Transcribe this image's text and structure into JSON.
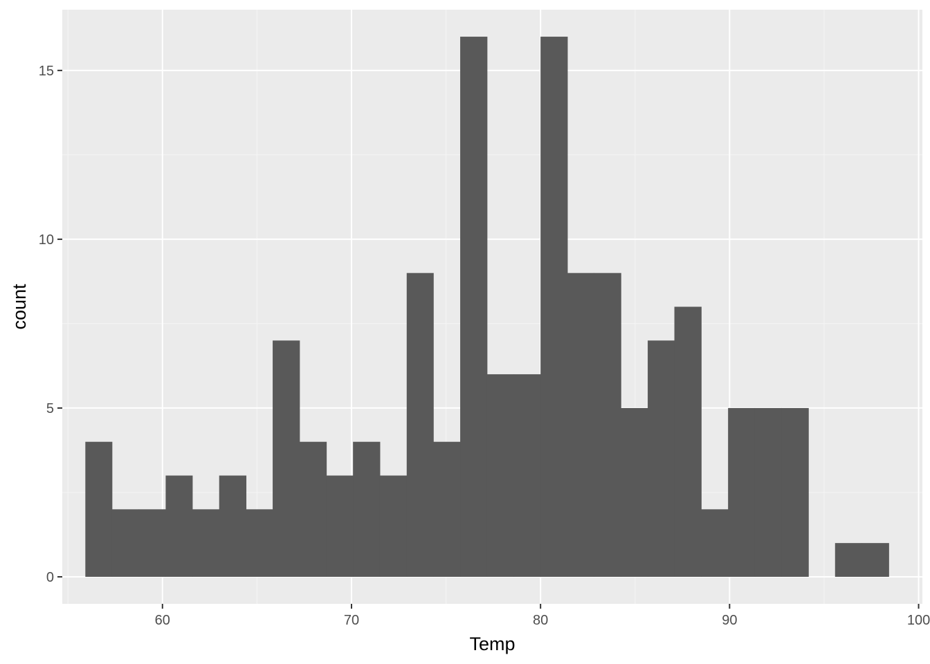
{
  "chart_data": {
    "type": "bar",
    "subtype": "histogram",
    "title": "",
    "xlabel": "Temp",
    "ylabel": "count",
    "bin_width": 1.4167,
    "bins": [
      {
        "x0": 55.92,
        "x1": 57.33,
        "count": 4
      },
      {
        "x0": 57.33,
        "x1": 58.75,
        "count": 2
      },
      {
        "x0": 58.75,
        "x1": 60.17,
        "count": 2
      },
      {
        "x0": 60.17,
        "x1": 61.58,
        "count": 3
      },
      {
        "x0": 61.58,
        "x1": 63.0,
        "count": 2
      },
      {
        "x0": 63.0,
        "x1": 64.42,
        "count": 3
      },
      {
        "x0": 64.42,
        "x1": 65.83,
        "count": 2
      },
      {
        "x0": 65.83,
        "x1": 67.25,
        "count": 7
      },
      {
        "x0": 67.25,
        "x1": 68.67,
        "count": 4
      },
      {
        "x0": 68.67,
        "x1": 70.08,
        "count": 3
      },
      {
        "x0": 70.08,
        "x1": 71.5,
        "count": 4
      },
      {
        "x0": 71.5,
        "x1": 72.92,
        "count": 3
      },
      {
        "x0": 72.92,
        "x1": 74.33,
        "count": 9
      },
      {
        "x0": 74.33,
        "x1": 75.75,
        "count": 4
      },
      {
        "x0": 75.75,
        "x1": 77.17,
        "count": 16
      },
      {
        "x0": 77.17,
        "x1": 78.58,
        "count": 6
      },
      {
        "x0": 78.58,
        "x1": 80.0,
        "count": 6
      },
      {
        "x0": 80.0,
        "x1": 81.42,
        "count": 16
      },
      {
        "x0": 81.42,
        "x1": 82.83,
        "count": 9
      },
      {
        "x0": 82.83,
        "x1": 84.25,
        "count": 9
      },
      {
        "x0": 84.25,
        "x1": 85.67,
        "count": 5
      },
      {
        "x0": 85.67,
        "x1": 87.08,
        "count": 7
      },
      {
        "x0": 87.08,
        "x1": 88.5,
        "count": 8
      },
      {
        "x0": 88.5,
        "x1": 89.92,
        "count": 2
      },
      {
        "x0": 89.92,
        "x1": 91.33,
        "count": 5
      },
      {
        "x0": 91.33,
        "x1": 92.75,
        "count": 5
      },
      {
        "x0": 92.75,
        "x1": 94.17,
        "count": 5
      },
      {
        "x0": 94.17,
        "x1": 95.58,
        "count": 0
      },
      {
        "x0": 95.58,
        "x1": 97.0,
        "count": 1
      },
      {
        "x0": 97.0,
        "x1": 98.42,
        "count": 1
      }
    ],
    "xlim": [
      54.7,
      100.2
    ],
    "ylim": [
      -0.8,
      16.8
    ],
    "x_ticks": [
      60,
      70,
      80,
      90,
      100
    ],
    "x_tick_labels": [
      "60",
      "70",
      "80",
      "90",
      "100"
    ],
    "y_ticks": [
      0,
      5,
      10,
      15
    ],
    "y_tick_labels": [
      "0",
      "5",
      "10",
      "15"
    ],
    "x_minor_ticks": [
      55,
      65,
      75,
      85,
      95
    ],
    "y_minor_ticks": [
      2.5,
      7.5,
      12.5
    ],
    "grid": true,
    "legend": "none",
    "colors": {
      "bar_fill": "#595959",
      "panel_background": "#ebebeb",
      "grid_major": "#ffffff",
      "grid_minor": "#f5f5f5",
      "tick_mark": "#333333"
    }
  }
}
